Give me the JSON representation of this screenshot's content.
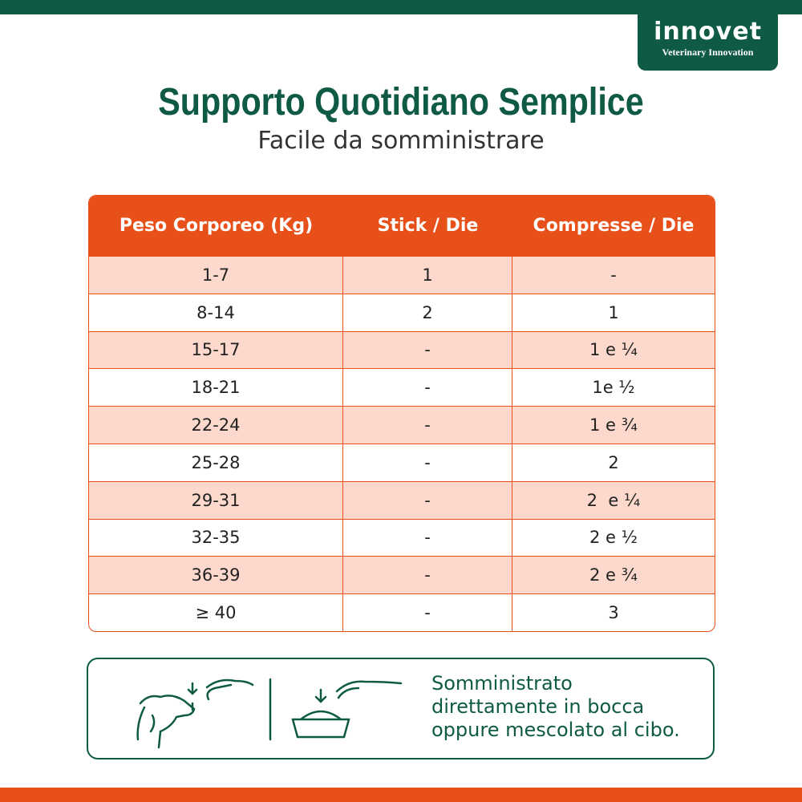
{
  "logo": {
    "brand": "innovet",
    "tagline": "Veterinary Innovation"
  },
  "header": {
    "title": "Supporto Quotidiano Semplice",
    "subtitle": "Facile da somministrare"
  },
  "table": {
    "columns": [
      "Peso Corporeo (Kg)",
      "Stick / Die",
      "Compresse / Die"
    ],
    "rows": [
      [
        "1-7",
        "1",
        "-"
      ],
      [
        "8-14",
        "2",
        "1"
      ],
      [
        "15-17",
        "-",
        "1 e ¼"
      ],
      [
        "18-21",
        "-",
        "1e ½"
      ],
      [
        "22-24",
        "-",
        "1 e ¾"
      ],
      [
        "25-28",
        "-",
        "2"
      ],
      [
        "29-31",
        "-",
        "2  e ¼"
      ],
      [
        "32-35",
        "-",
        "2 e ½"
      ],
      [
        "36-39",
        "-",
        "2 e ¾"
      ],
      [
        "≥ 40",
        "-",
        "3"
      ]
    ]
  },
  "note": {
    "lines": [
      "Somministrato",
      "direttamente in bocca",
      "oppure mescolato al cibo."
    ]
  }
}
